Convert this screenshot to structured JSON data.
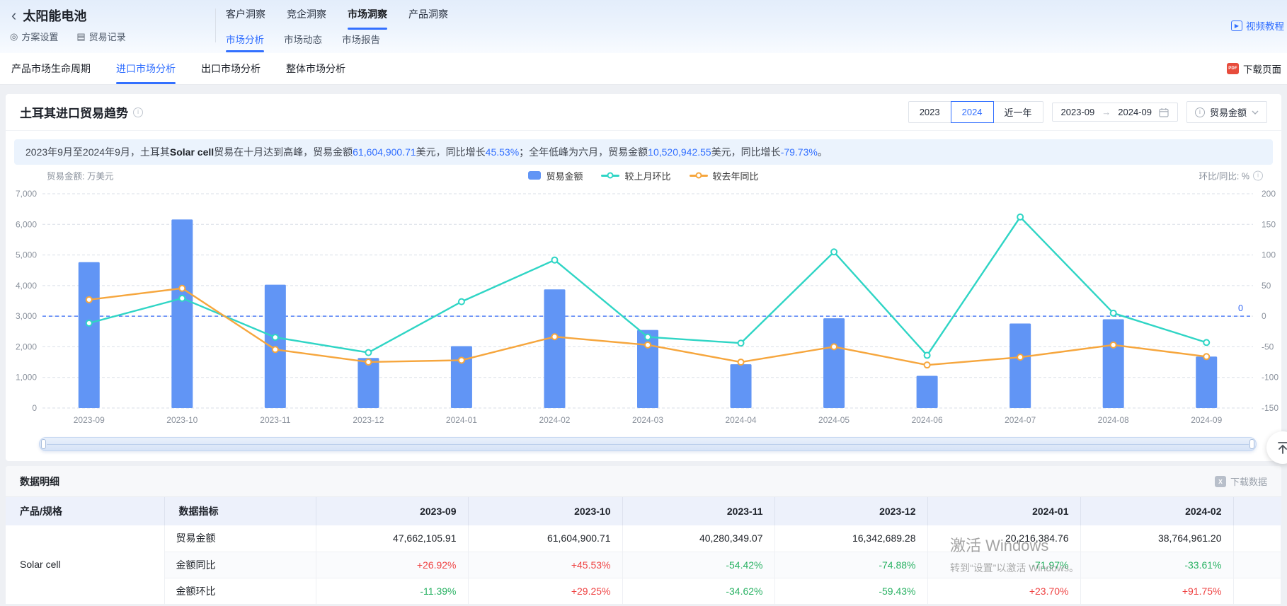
{
  "header": {
    "back_icon": "‹",
    "title": "太阳能电池",
    "scheme_settings": "方案设置",
    "trade_records": "贸易记录",
    "nav_tabs": [
      {
        "label": "客户洞察",
        "active": false
      },
      {
        "label": "竞企洞察",
        "active": false
      },
      {
        "label": "市场洞察",
        "active": true
      },
      {
        "label": "产品洞察",
        "active": false
      }
    ],
    "sub_nav": [
      {
        "label": "市场分析",
        "active": true
      },
      {
        "label": "市场动态",
        "active": false
      },
      {
        "label": "市场报告",
        "active": false
      }
    ],
    "video_tutorial": "视频教程"
  },
  "page_tabs": [
    {
      "label": "产品市场生命周期",
      "active": false
    },
    {
      "label": "进口市场分析",
      "active": true
    },
    {
      "label": "出口市场分析",
      "active": false
    },
    {
      "label": "整体市场分析",
      "active": false
    }
  ],
  "download_page": "下载页面",
  "chart_card": {
    "title": "土耳其进口贸易趋势",
    "year_buttons": [
      {
        "label": "2023",
        "active": false
      },
      {
        "label": "2024",
        "active": true
      },
      {
        "label": "近一年",
        "active": false
      }
    ],
    "date_range": {
      "start": "2023-09",
      "arrow": "→",
      "end": "2024-09"
    },
    "metric_dropdown": "贸易金额",
    "summary_segments": [
      {
        "text": "2023年9月至2024年9月，土耳其",
        "cls": ""
      },
      {
        "text": "Solar cell",
        "cls": "b"
      },
      {
        "text": "贸易在十月达到高峰，贸易金额",
        "cls": ""
      },
      {
        "text": "61,604,900.71",
        "cls": "blue"
      },
      {
        "text": "美元，同比增长",
        "cls": ""
      },
      {
        "text": "45.53%",
        "cls": "blue"
      },
      {
        "text": "；全年低峰为六月，贸易金额",
        "cls": ""
      },
      {
        "text": "10,520,942.55",
        "cls": "blue"
      },
      {
        "text": "美元，同比增长",
        "cls": ""
      },
      {
        "text": "-79.73%",
        "cls": "blue"
      },
      {
        "text": "。",
        "cls": ""
      }
    ],
    "left_axis_caption": "贸易金额: 万美元",
    "right_axis_caption": "环比/同比: %"
  },
  "chart_data": {
    "type": "bar",
    "categories": [
      "2023-09",
      "2023-10",
      "2023-11",
      "2023-12",
      "2024-01",
      "2024-02",
      "2024-03",
      "2024-04",
      "2024-05",
      "2024-06",
      "2024-07",
      "2024-08",
      "2024-09"
    ],
    "series": [
      {
        "name": "贸易金额",
        "type": "bar",
        "color": "#6195f5",
        "axis": "left",
        "values": [
          4766.21,
          6160.49,
          4028.03,
          1634.27,
          2021.64,
          3876.5,
          2550,
          1430,
          2930,
          1052.09,
          2760,
          2900,
          1680
        ]
      },
      {
        "name": "较上月环比",
        "type": "line",
        "color": "#2fd5c5",
        "axis": "right",
        "values": [
          -11.39,
          29.25,
          -34.62,
          -59.43,
          23.7,
          91.75,
          -34,
          -44,
          105,
          -64,
          162,
          5,
          -43
        ]
      },
      {
        "name": "较去年同比",
        "type": "line",
        "color": "#f6a63d",
        "axis": "right",
        "values": [
          26.92,
          45.53,
          -54.42,
          -74.88,
          -71.97,
          -33.61,
          -47,
          -75,
          -50,
          -79.73,
          -67,
          -47,
          -66
        ]
      }
    ],
    "ylabel_left": "贸易金额: 万美元",
    "ylabel_right": "环比/同比: %",
    "ylim_left": [
      0,
      7000
    ],
    "ylim_right": [
      -150,
      200
    ],
    "left_ticks": [
      "7,000",
      "6,000",
      "5,000",
      "4,000",
      "3,000",
      "2,000",
      "1,000",
      "0"
    ],
    "right_ticks": [
      "200",
      "150",
      "100",
      "50",
      "0",
      "-50",
      "-100",
      "-150"
    ],
    "zero_line": {
      "value": 0,
      "color": "#3166f4",
      "label": "0"
    },
    "grid": true,
    "legend_position": "top-center"
  },
  "table": {
    "section_title": "数据明细",
    "download_label": "下载数据",
    "header_cols": [
      "产品/规格",
      "数据指标",
      "2023-09",
      "2023-10",
      "2023-11",
      "2023-12",
      "2024-01",
      "2024-02"
    ],
    "product": "Solar cell",
    "rows": [
      {
        "label": "贸易金额",
        "cells": [
          {
            "v": "47,662,105.91",
            "cls": "num k"
          },
          {
            "v": "61,604,900.71",
            "cls": "num k"
          },
          {
            "v": "40,280,349.07",
            "cls": "num k"
          },
          {
            "v": "16,342,689.28",
            "cls": "num k"
          },
          {
            "v": "20,216,384.76",
            "cls": "num k"
          },
          {
            "v": "38,764,961.20",
            "cls": "num k"
          }
        ]
      },
      {
        "label": "金额同比",
        "cells": [
          {
            "v": "+26.92%",
            "cls": "num r"
          },
          {
            "v": "+45.53%",
            "cls": "num r"
          },
          {
            "v": "-54.42%",
            "cls": "num g"
          },
          {
            "v": "-74.88%",
            "cls": "num g"
          },
          {
            "v": "-71.97%",
            "cls": "num g"
          },
          {
            "v": "-33.61%",
            "cls": "num g"
          }
        ]
      },
      {
        "label": "金额环比",
        "cells": [
          {
            "v": "-11.39%",
            "cls": "num g"
          },
          {
            "v": "+29.25%",
            "cls": "num r"
          },
          {
            "v": "-34.62%",
            "cls": "num g"
          },
          {
            "v": "-59.43%",
            "cls": "num g"
          },
          {
            "v": "+23.70%",
            "cls": "num r"
          },
          {
            "v": "+91.75%",
            "cls": "num r"
          }
        ]
      }
    ]
  },
  "watermark": {
    "line1": "激活 Windows",
    "line2": "转到“设置”以激活 Windows。"
  }
}
